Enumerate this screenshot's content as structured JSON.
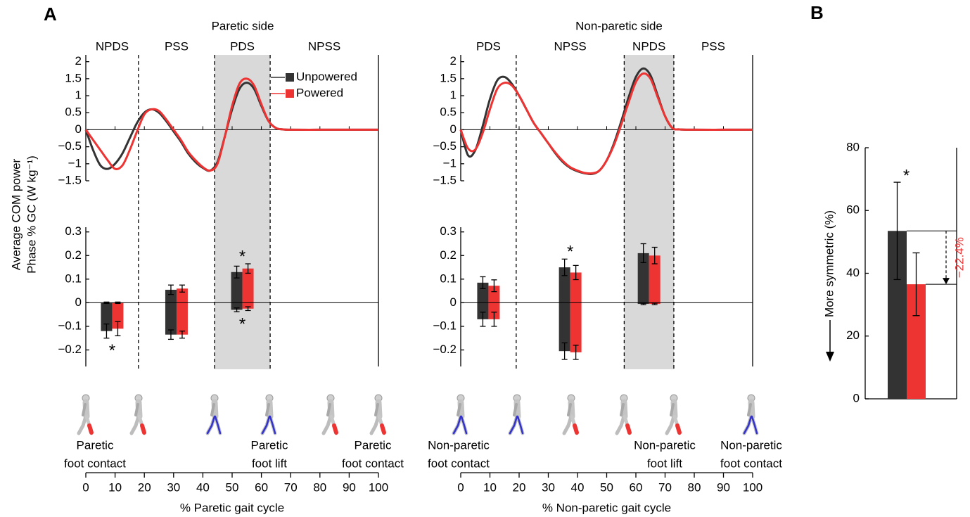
{
  "panel_labels": [
    "A",
    "B"
  ],
  "ylabel_a": [
    "Average COM power",
    "Phase % GC (W kg⁻¹)"
  ],
  "chart_data": [
    {
      "type": "line",
      "title": "Paretic side",
      "phases": [
        "NPDS",
        "PSS",
        "PDS",
        "NPSS"
      ],
      "phase_bounds": [
        18,
        44,
        63
      ],
      "shaded_phase": 2,
      "x": [
        0,
        2.5,
        5,
        7.5,
        10,
        12.5,
        15,
        17.5,
        20,
        22.5,
        25,
        27.5,
        30,
        32.5,
        35,
        37.5,
        40,
        42.5,
        45,
        47.5,
        50,
        52.5,
        55,
        57.5,
        60,
        62.5,
        65,
        67.5,
        70,
        80,
        90,
        100
      ],
      "series": [
        {
          "name": "Unpowered",
          "color": "#333333",
          "values": [
            0,
            -0.6,
            -1.05,
            -1.15,
            -1.0,
            -0.7,
            -0.25,
            0.2,
            0.5,
            0.6,
            0.5,
            0.25,
            -0.05,
            -0.35,
            -0.7,
            -0.95,
            -1.12,
            -1.2,
            -0.95,
            -0.2,
            0.6,
            1.2,
            1.38,
            1.2,
            0.7,
            0.25,
            0.05,
            0.01,
            0,
            0,
            0,
            0
          ]
        },
        {
          "name": "Powered",
          "color": "#ee3333",
          "values": [
            0,
            -0.3,
            -0.6,
            -0.9,
            -1.15,
            -1.05,
            -0.6,
            -0.05,
            0.45,
            0.6,
            0.55,
            0.3,
            0,
            -0.3,
            -0.65,
            -0.9,
            -1.1,
            -1.2,
            -1.0,
            -0.2,
            0.7,
            1.35,
            1.5,
            1.3,
            0.75,
            0.25,
            0.05,
            0.01,
            0,
            0,
            0,
            0
          ]
        }
      ],
      "xlim": [
        0,
        100
      ],
      "xticks": [
        0,
        10,
        20,
        30,
        40,
        50,
        60,
        70,
        80,
        90,
        100
      ],
      "ylim": [
        -1.5,
        2.2
      ],
      "yticks": [
        {
          "value": -1.5,
          "label": "−1.5"
        },
        {
          "value": -1,
          "label": "−1"
        },
        {
          "value": -0.5,
          "label": "−0.5"
        },
        0,
        0.5,
        1,
        1.5,
        2
      ],
      "legend": "upper right",
      "xlabel": "% Paretic gait cycle",
      "events": [
        [
          "Paretic",
          "foot contact"
        ],
        [
          "Paretic",
          "foot lift"
        ],
        [
          "Paretic",
          "foot contact"
        ]
      ]
    },
    {
      "type": "bar",
      "ylim": [
        -0.27,
        0.32
      ],
      "yticks": [
        {
          "value": -0.2,
          "label": "−0.2"
        },
        {
          "value": -0.1,
          "label": "−0.1"
        },
        0,
        0.1,
        0.2,
        0.3
      ],
      "series": [
        {
          "color": "#333333",
          "values": [
            0,
            0.055,
            0.13,
            null
          ],
          "errors": [
            0.003,
            0.02,
            0.025,
            null
          ],
          "neg_values": [
            -0.12,
            -0.135,
            -0.03,
            null
          ],
          "neg_errors": [
            0.03,
            0.02,
            0.008,
            null
          ]
        },
        {
          "color": "#ee3333",
          "values": [
            0,
            0.06,
            0.145,
            null
          ],
          "errors": [
            0.003,
            0.015,
            0.02,
            null
          ],
          "neg_values": [
            -0.11,
            -0.135,
            -0.025,
            null
          ],
          "neg_errors": [
            0.03,
            0.015,
            0.008,
            null
          ]
        }
      ],
      "pos_stars": [
        null,
        null,
        "*",
        null
      ],
      "neg_stars": [
        "*",
        null,
        "*",
        null
      ]
    },
    {
      "type": "line",
      "title": "Non-paretic side",
      "phases": [
        "PDS",
        "NPSS",
        "NPDS",
        "PSS"
      ],
      "phase_bounds": [
        19,
        56,
        73
      ],
      "shaded_phase": 2,
      "x": [
        0,
        2.5,
        5,
        7.5,
        10,
        12.5,
        15,
        17.5,
        20,
        22.5,
        25,
        27.5,
        30,
        32.5,
        35,
        37.5,
        40,
        42.5,
        45,
        47.5,
        50,
        52.5,
        55,
        57.5,
        60,
        62.5,
        65,
        67.5,
        70,
        72.5,
        75,
        80,
        90,
        100
      ],
      "series": [
        {
          "name": "Unpowered",
          "color": "#333333",
          "values": [
            0,
            -0.75,
            -0.6,
            0.1,
            0.9,
            1.45,
            1.55,
            1.35,
            1.0,
            0.6,
            0.2,
            -0.1,
            -0.4,
            -0.7,
            -0.95,
            -1.12,
            -1.22,
            -1.28,
            -1.3,
            -1.2,
            -0.9,
            -0.4,
            0.25,
            0.95,
            1.55,
            1.8,
            1.6,
            1.0,
            0.4,
            0.05,
            0.01,
            0,
            0,
            0
          ]
        },
        {
          "name": "Powered",
          "color": "#ee3333",
          "values": [
            0,
            -0.55,
            -0.58,
            -0.1,
            0.6,
            1.2,
            1.38,
            1.3,
            1.0,
            0.6,
            0.2,
            -0.1,
            -0.4,
            -0.68,
            -0.92,
            -1.1,
            -1.2,
            -1.27,
            -1.28,
            -1.2,
            -0.9,
            -0.45,
            0.15,
            0.8,
            1.4,
            1.65,
            1.5,
            0.95,
            0.4,
            0.05,
            0.01,
            0,
            0,
            0
          ]
        }
      ],
      "xlim": [
        0,
        100
      ],
      "xticks": [
        0,
        10,
        20,
        30,
        40,
        50,
        60,
        70,
        80,
        90,
        100
      ],
      "ylim": [
        -1.5,
        2.2
      ],
      "yticks": [
        {
          "value": -1.5,
          "label": "−1.5"
        },
        {
          "value": -1,
          "label": "−1"
        },
        {
          "value": -0.5,
          "label": "−0.5"
        },
        0,
        0.5,
        1,
        1.5,
        2
      ],
      "xlabel": "% Non-paretic gait cycle",
      "events": [
        [
          "Non-paretic",
          "foot contact"
        ],
        [
          "Non-paretic",
          "foot lift"
        ],
        [
          "Non-paretic",
          "foot contact"
        ]
      ]
    },
    {
      "type": "bar",
      "ylim": [
        -0.27,
        0.32
      ],
      "yticks": [
        {
          "value": -0.2,
          "label": "−0.2"
        },
        {
          "value": -0.1,
          "label": "−0.1"
        },
        0,
        0.1,
        0.2,
        0.3
      ],
      "series": [
        {
          "color": "#333333",
          "values": [
            0.085,
            0.15,
            0.21,
            null
          ],
          "errors": [
            0.025,
            0.035,
            0.04,
            null
          ],
          "neg_values": [
            -0.07,
            -0.205,
            -0.005,
            null
          ],
          "neg_errors": [
            0.03,
            0.035,
            0.003,
            null
          ]
        },
        {
          "color": "#ee3333",
          "values": [
            0.072,
            0.128,
            0.2,
            null
          ],
          "errors": [
            0.025,
            0.03,
            0.035,
            null
          ],
          "neg_values": [
            -0.07,
            -0.21,
            -0.005,
            null
          ],
          "neg_errors": [
            0.03,
            0.03,
            0.003,
            null
          ]
        }
      ],
      "pos_stars": [
        null,
        "*",
        null,
        null
      ],
      "neg_stars": [
        null,
        null,
        null,
        null
      ]
    },
    {
      "type": "bar",
      "ylabel": "More symmetric (%)",
      "ylim": [
        0,
        80
      ],
      "yticks": [
        0,
        20,
        40,
        60,
        80
      ],
      "values": [
        53.5,
        36.5
      ],
      "errors": [
        15.5,
        10
      ],
      "colors": [
        "#333333",
        "#ee3333"
      ],
      "stars": [
        "*",
        null
      ],
      "annotation": "−22.4%"
    }
  ]
}
